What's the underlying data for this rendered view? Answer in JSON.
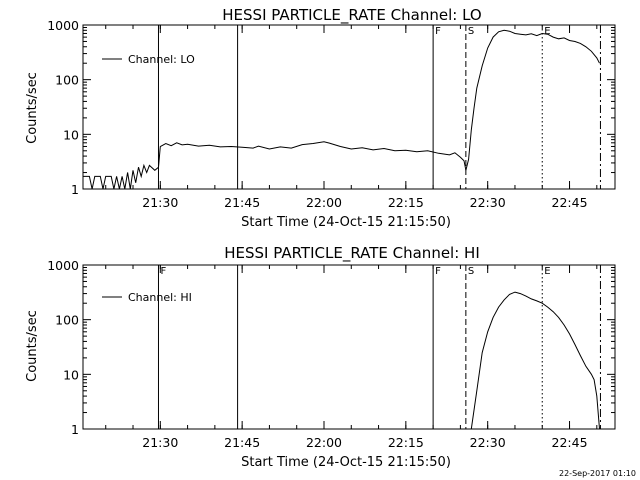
{
  "stamp": "22-Sep-2017 01:10",
  "chart_data": [
    {
      "type": "line",
      "title": "HESSI PARTICLE_RATE Channel: LO",
      "xlabel": "Start Time (24-Oct-15 21:15:50)",
      "ylabel": "Counts/sec",
      "legend": "Channel: LO",
      "legend_placement": "top-left",
      "y_scale": "log",
      "xlim": [
        "21:15:50",
        "22:53:20"
      ],
      "ylim": [
        1,
        1000
      ],
      "x_ticks": [
        "21:30",
        "21:45",
        "22:00",
        "22:15",
        "22:30",
        "22:45"
      ],
      "y_ticks": [
        "1",
        "10",
        "100",
        "1000"
      ],
      "markers": [
        {
          "time": "21:29:40",
          "label": "",
          "style": "solid"
        },
        {
          "time": "21:44:10",
          "label": "",
          "style": "solid"
        },
        {
          "time": "22:20:00",
          "label": "F",
          "style": "solid"
        },
        {
          "time": "22:26:00",
          "label": "S",
          "style": "dashed"
        },
        {
          "time": "22:40:00",
          "label": "E",
          "style": "dotted"
        },
        {
          "time": "22:50:40",
          "label": "",
          "style": "dashdot"
        }
      ],
      "series": [
        {
          "name": "Channel: LO",
          "points": [
            [
              "21:15:50",
              1.7
            ],
            [
              "21:17:00",
              1.7
            ],
            [
              "21:17:30",
              1.0
            ],
            [
              "21:18:00",
              1.7
            ],
            [
              "21:19:00",
              1.7
            ],
            [
              "21:19:30",
              1.0
            ],
            [
              "21:20:00",
              1.7
            ],
            [
              "21:21:00",
              1.7
            ],
            [
              "21:21:30",
              1.0
            ],
            [
              "21:22:00",
              1.7
            ],
            [
              "21:22:30",
              1.0
            ],
            [
              "21:23:00",
              1.7
            ],
            [
              "21:23:30",
              1.0
            ],
            [
              "21:24:00",
              2.0
            ],
            [
              "21:24:30",
              1.0
            ],
            [
              "21:25:00",
              2.2
            ],
            [
              "21:25:30",
              1.3
            ],
            [
              "21:26:00",
              2.5
            ],
            [
              "21:26:30",
              1.7
            ],
            [
              "21:27:00",
              2.7
            ],
            [
              "21:27:30",
              2.0
            ],
            [
              "21:28:00",
              2.7
            ],
            [
              "21:29:00",
              2.2
            ],
            [
              "21:29:40",
              2.5
            ],
            [
              "21:30:00",
              6.0
            ],
            [
              "21:31:00",
              6.8
            ],
            [
              "21:32:00",
              6.2
            ],
            [
              "21:33:00",
              7.0
            ],
            [
              "21:34:00",
              6.4
            ],
            [
              "21:35:00",
              6.6
            ],
            [
              "21:37:00",
              6.1
            ],
            [
              "21:39:00",
              6.3
            ],
            [
              "21:41:00",
              5.9
            ],
            [
              "21:43:00",
              6.0
            ],
            [
              "21:45:00",
              5.8
            ],
            [
              "21:47:00",
              5.6
            ],
            [
              "21:48:00",
              6.1
            ],
            [
              "21:50:00",
              5.4
            ],
            [
              "21:52:00",
              5.9
            ],
            [
              "21:54:00",
              5.6
            ],
            [
              "21:56:00",
              6.5
            ],
            [
              "21:58:00",
              6.8
            ],
            [
              "22:00:00",
              7.3
            ],
            [
              "22:01:00",
              6.9
            ],
            [
              "22:03:00",
              6.0
            ],
            [
              "22:05:00",
              5.4
            ],
            [
              "22:07:00",
              5.7
            ],
            [
              "22:09:00",
              5.2
            ],
            [
              "22:11:00",
              5.5
            ],
            [
              "22:13:00",
              5.0
            ],
            [
              "22:15:00",
              5.1
            ],
            [
              "22:17:00",
              4.8
            ],
            [
              "22:19:00",
              5.0
            ],
            [
              "22:21:00",
              4.5
            ],
            [
              "22:23:00",
              4.2
            ],
            [
              "22:24:00",
              4.6
            ],
            [
              "22:25:00",
              3.8
            ],
            [
              "22:25:40",
              3.3
            ],
            [
              "22:26:00",
              2.2
            ],
            [
              "22:26:30",
              3.5
            ],
            [
              "22:27:00",
              12
            ],
            [
              "22:27:30",
              30
            ],
            [
              "22:28:00",
              70
            ],
            [
              "22:29:00",
              180
            ],
            [
              "22:30:00",
              380
            ],
            [
              "22:31:00",
              600
            ],
            [
              "22:32:00",
              750
            ],
            [
              "22:33:00",
              800
            ],
            [
              "22:34:00",
              770
            ],
            [
              "22:35:00",
              700
            ],
            [
              "22:36:00",
              680
            ],
            [
              "22:37:00",
              660
            ],
            [
              "22:38:00",
              690
            ],
            [
              "22:39:00",
              640
            ],
            [
              "22:40:00",
              700
            ],
            [
              "22:41:00",
              680
            ],
            [
              "22:42:00",
              600
            ],
            [
              "22:43:00",
              560
            ],
            [
              "22:44:00",
              580
            ],
            [
              "22:45:00",
              520
            ],
            [
              "22:46:00",
              500
            ],
            [
              "22:47:00",
              460
            ],
            [
              "22:48:00",
              400
            ],
            [
              "22:49:00",
              330
            ],
            [
              "22:50:00",
              250
            ],
            [
              "22:50:30",
              200
            ]
          ]
        }
      ]
    },
    {
      "type": "line",
      "title": "HESSI PARTICLE_RATE Channel: HI",
      "xlabel": "Start Time (24-Oct-15 21:15:50)",
      "ylabel": "Counts/sec",
      "legend": "Channel: HI",
      "legend_placement": "top-left",
      "y_scale": "log",
      "xlim": [
        "21:15:50",
        "22:53:20"
      ],
      "ylim": [
        1,
        1000
      ],
      "x_ticks": [
        "21:30",
        "21:45",
        "22:00",
        "22:15",
        "22:30",
        "22:45"
      ],
      "y_ticks": [
        "1",
        "10",
        "100",
        "1000"
      ],
      "markers": [
        {
          "time": "21:29:40",
          "label": "F",
          "style": "solid"
        },
        {
          "time": "21:44:10",
          "label": "",
          "style": "solid"
        },
        {
          "time": "22:20:00",
          "label": "F",
          "style": "solid"
        },
        {
          "time": "22:26:00",
          "label": "S",
          "style": "dashed"
        },
        {
          "time": "22:40:00",
          "label": "E",
          "style": "dotted"
        },
        {
          "time": "22:50:40",
          "label": "",
          "style": "dashdot"
        }
      ],
      "series": [
        {
          "name": "Channel: HI",
          "points": [
            [
              "22:27:00",
              1.0
            ],
            [
              "22:28:00",
              5
            ],
            [
              "22:29:00",
              25
            ],
            [
              "22:30:00",
              60
            ],
            [
              "22:31:00",
              110
            ],
            [
              "22:32:00",
              170
            ],
            [
              "22:33:00",
              230
            ],
            [
              "22:34:00",
              290
            ],
            [
              "22:35:00",
              320
            ],
            [
              "22:36:00",
              300
            ],
            [
              "22:37:00",
              270
            ],
            [
              "22:38:00",
              240
            ],
            [
              "22:39:00",
              220
            ],
            [
              "22:40:00",
              200
            ],
            [
              "22:41:00",
              170
            ],
            [
              "22:42:00",
              140
            ],
            [
              "22:43:00",
              110
            ],
            [
              "22:44:00",
              80
            ],
            [
              "22:45:00",
              55
            ],
            [
              "22:46:00",
              35
            ],
            [
              "22:47:00",
              22
            ],
            [
              "22:48:00",
              14
            ],
            [
              "22:49:00",
              10
            ],
            [
              "22:49:30",
              8
            ],
            [
              "22:50:00",
              4
            ],
            [
              "22:50:30",
              1.0
            ]
          ]
        }
      ]
    }
  ]
}
